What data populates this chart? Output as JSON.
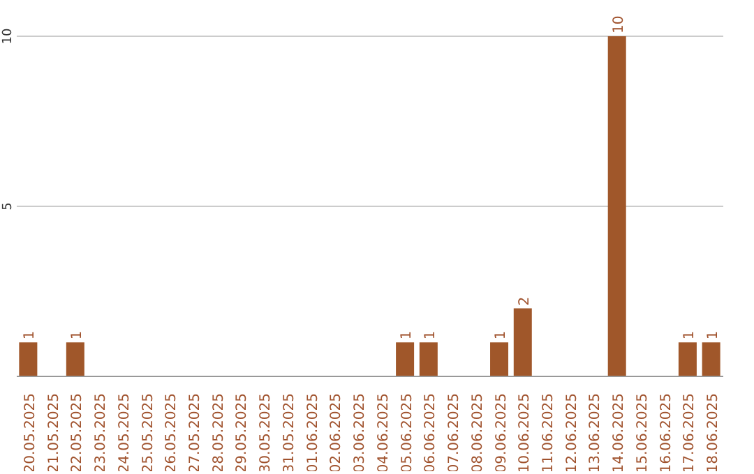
{
  "chart_data": {
    "type": "bar",
    "categories": [
      "20.05.2025",
      "21.05.2025",
      "22.05.2025",
      "23.05.2025",
      "24.05.2025",
      "25.05.2025",
      "26.05.2025",
      "27.05.2025",
      "28.05.2025",
      "29.05.2025",
      "30.05.2025",
      "31.05.2025",
      "01.06.2025",
      "02.06.2025",
      "03.06.2025",
      "04.06.2025",
      "05.06.2025",
      "06.06.2025",
      "07.06.2025",
      "08.06.2025",
      "09.06.2025",
      "10.06.2025",
      "11.06.2025",
      "12.06.2025",
      "13.06.2025",
      "14.06.2025",
      "15.06.2025",
      "16.06.2025",
      "17.06.2025",
      "18.06.2025"
    ],
    "values": [
      1,
      0,
      1,
      0,
      0,
      0,
      0,
      0,
      0,
      0,
      0,
      0,
      0,
      0,
      0,
      0,
      1,
      1,
      0,
      0,
      1,
      2,
      0,
      0,
      0,
      10,
      0,
      0,
      1,
      1
    ],
    "value_labels": [
      "1",
      null,
      "1",
      null,
      null,
      null,
      null,
      null,
      null,
      null,
      null,
      null,
      null,
      null,
      null,
      null,
      "1",
      "1",
      null,
      null,
      "1",
      "2",
      null,
      null,
      null,
      "10",
      null,
      null,
      "1",
      "1"
    ],
    "color": "#a0572a",
    "ylim": [
      0,
      10
    ],
    "yticks": [
      {
        "value": 0,
        "label": null
      },
      5,
      10
    ],
    "grid": "y"
  }
}
